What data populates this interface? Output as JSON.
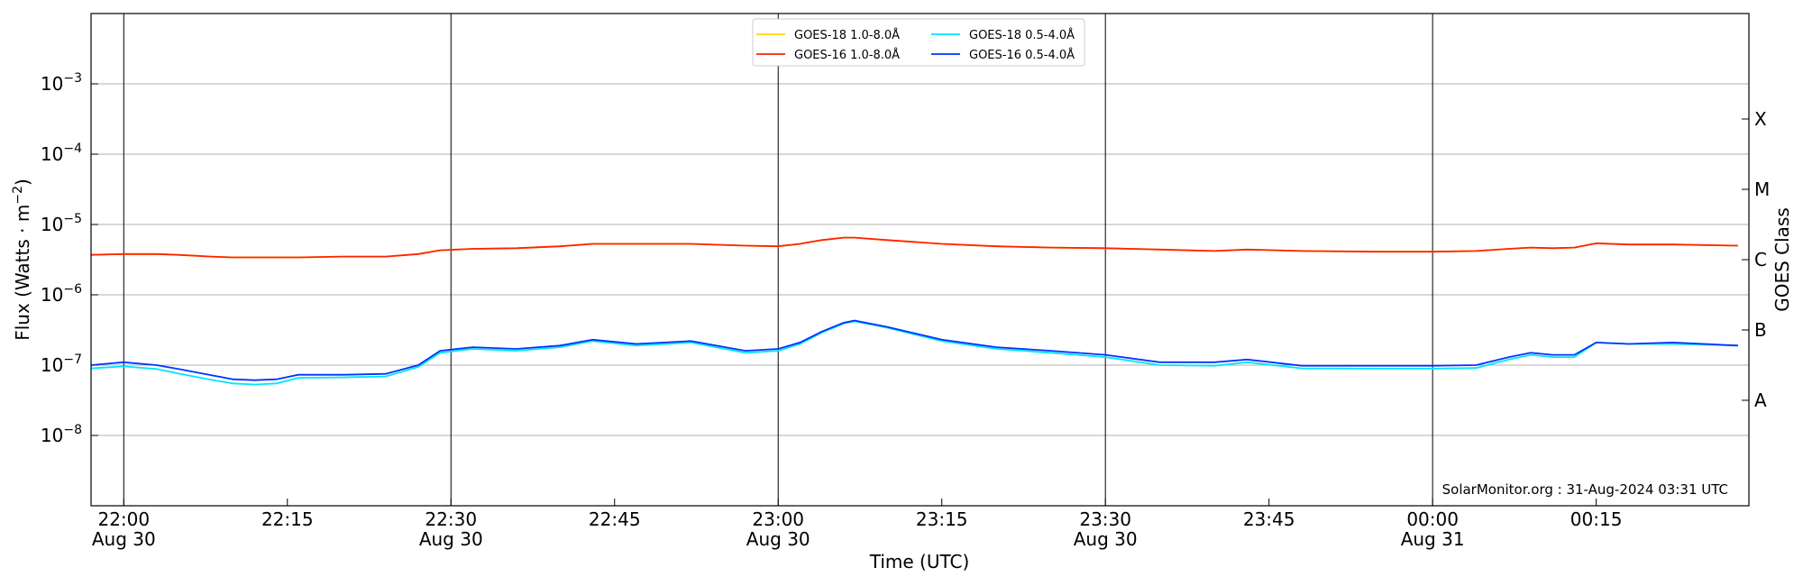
{
  "chart_data": {
    "type": "line",
    "xlabel": "Time (UTC)",
    "ylabel": "Flux (Watts · m",
    "ylabel_sup": "−2",
    "ylabel_end": ")",
    "y2label": "GOES Class",
    "annotation": "SolarMonitor.org : 31-Aug-2024 03:31 UTC",
    "log_y": true,
    "grid": true,
    "legend": "upper center",
    "xlim": [
      "Aug 30 21:57",
      "Aug 31 00:29"
    ],
    "xticks": [
      {
        "value": "Aug 30 22:00",
        "label": "22:00",
        "date": "Aug 30"
      },
      {
        "value": "Aug 30 22:15",
        "label": "22:15"
      },
      {
        "value": "Aug 30 22:30",
        "label": "22:30",
        "date": "Aug 30"
      },
      {
        "value": "Aug 30 22:45",
        "label": "22:45"
      },
      {
        "value": "Aug 30 23:00",
        "label": "23:00",
        "date": "Aug 30"
      },
      {
        "value": "Aug 30 23:15",
        "label": "23:15"
      },
      {
        "value": "Aug 30 23:30",
        "label": "23:30",
        "date": "Aug 30"
      },
      {
        "value": "Aug 30 23:45",
        "label": "23:45"
      },
      {
        "value": "Aug 31 00:00",
        "label": "00:00",
        "date": "Aug 31"
      },
      {
        "value": "Aug 31 00:15",
        "label": "00:15"
      }
    ],
    "ylim": [
      1e-09,
      0.01
    ],
    "yticks": [
      {
        "value": 1e-08,
        "label": "10",
        "sup": "−8"
      },
      {
        "value": 1e-07,
        "label": "10",
        "sup": "−7"
      },
      {
        "value": 1e-06,
        "label": "10",
        "sup": "−6"
      },
      {
        "value": 1e-05,
        "label": "10",
        "sup": "−5"
      },
      {
        "value": 0.0001,
        "label": "10",
        "sup": "−4"
      },
      {
        "value": 0.001,
        "label": "10",
        "sup": "−3"
      }
    ],
    "y2ticks": [
      {
        "value": 3.162e-08,
        "label": "A"
      },
      {
        "value": 3.162e-07,
        "label": "B"
      },
      {
        "value": 3.162e-06,
        "label": "C"
      },
      {
        "value": 3.162e-05,
        "label": "M"
      },
      {
        "value": 0.0003162,
        "label": "X"
      }
    ],
    "x": [
      "Aug 30 21:57",
      "Aug 30 22:00",
      "Aug 30 22:03",
      "Aug 30 22:05",
      "Aug 30 22:08",
      "Aug 30 22:10",
      "Aug 30 22:12",
      "Aug 30 22:14",
      "Aug 30 22:16",
      "Aug 30 22:20",
      "Aug 30 22:24",
      "Aug 30 22:27",
      "Aug 30 22:29",
      "Aug 30 22:32",
      "Aug 30 22:36",
      "Aug 30 22:40",
      "Aug 30 22:43",
      "Aug 30 22:47",
      "Aug 30 22:52",
      "Aug 30 22:57",
      "Aug 30 23:00",
      "Aug 30 23:02",
      "Aug 30 23:04",
      "Aug 30 23:06",
      "Aug 30 23:07",
      "Aug 30 23:10",
      "Aug 30 23:15",
      "Aug 30 23:20",
      "Aug 30 23:25",
      "Aug 30 23:30",
      "Aug 30 23:35",
      "Aug 30 23:40",
      "Aug 30 23:43",
      "Aug 30 23:48",
      "Aug 30 23:55",
      "Aug 31 00:00",
      "Aug 31 00:04",
      "Aug 31 00:07",
      "Aug 31 00:09",
      "Aug 31 00:11",
      "Aug 31 00:13",
      "Aug 31 00:15",
      "Aug 31 00:18",
      "Aug 31 00:22",
      "Aug 31 00:28"
    ],
    "series": [
      {
        "name": "GOES-18 1.0-8.0Å",
        "color": "#ffd700",
        "values": [
          3.7e-06,
          3.8e-06,
          3.8e-06,
          3.7e-06,
          3.5e-06,
          3.4e-06,
          3.4e-06,
          3.4e-06,
          3.4e-06,
          3.5e-06,
          3.5e-06,
          3.8e-06,
          4.3e-06,
          4.5e-06,
          4.6e-06,
          4.9e-06,
          5.3e-06,
          5.3e-06,
          5.3e-06,
          5e-06,
          4.9e-06,
          5.3e-06,
          6e-06,
          6.5e-06,
          6.5e-06,
          6e-06,
          5.3e-06,
          4.9e-06,
          4.7e-06,
          4.6e-06,
          4.4e-06,
          4.2e-06,
          4.4e-06,
          4.2e-06,
          4.1e-06,
          4.1e-06,
          4.2e-06,
          4.5e-06,
          4.7e-06,
          4.6e-06,
          4.7e-06,
          5.4e-06,
          5.2e-06,
          5.2e-06,
          5e-06
        ]
      },
      {
        "name": "GOES-16 1.0-8.0Å",
        "color": "#ff2200",
        "values": [
          3.7e-06,
          3.8e-06,
          3.8e-06,
          3.7e-06,
          3.5e-06,
          3.4e-06,
          3.4e-06,
          3.4e-06,
          3.4e-06,
          3.5e-06,
          3.5e-06,
          3.8e-06,
          4.3e-06,
          4.5e-06,
          4.6e-06,
          4.9e-06,
          5.3e-06,
          5.3e-06,
          5.3e-06,
          5e-06,
          4.9e-06,
          5.3e-06,
          6e-06,
          6.5e-06,
          6.5e-06,
          6e-06,
          5.3e-06,
          4.9e-06,
          4.7e-06,
          4.6e-06,
          4.4e-06,
          4.2e-06,
          4.4e-06,
          4.2e-06,
          4.1e-06,
          4.1e-06,
          4.2e-06,
          4.5e-06,
          4.7e-06,
          4.6e-06,
          4.7e-06,
          5.4e-06,
          5.2e-06,
          5.2e-06,
          5e-06
        ]
      },
      {
        "name": "GOES-18 0.5-4.0Å",
        "color": "#00e5ff",
        "values": [
          9e-08,
          9.6e-08,
          8.8e-08,
          7.6e-08,
          6.2e-08,
          5.5e-08,
          5.3e-08,
          5.5e-08,
          6.6e-08,
          6.7e-08,
          6.9e-08,
          9.4e-08,
          1.5e-07,
          1.7e-07,
          1.6e-07,
          1.8e-07,
          2.2e-07,
          1.9e-07,
          2.1e-07,
          1.5e-07,
          1.6e-07,
          2e-07,
          2.9e-07,
          3.9e-07,
          4.2e-07,
          3.4e-07,
          2.2e-07,
          1.7e-07,
          1.5e-07,
          1.3e-07,
          1e-07,
          9.8e-08,
          1.1e-07,
          9e-08,
          8.9e-08,
          8.9e-08,
          9.1e-08,
          1.2e-07,
          1.4e-07,
          1.3e-07,
          1.3e-07,
          2.1e-07,
          2e-07,
          2e-07,
          1.9e-07
        ]
      },
      {
        "name": "GOES-16 0.5-4.0Å",
        "color": "#0033ff",
        "values": [
          1e-07,
          1.1e-07,
          1e-07,
          8.8e-08,
          7.2e-08,
          6.3e-08,
          6.1e-08,
          6.3e-08,
          7.3e-08,
          7.3e-08,
          7.5e-08,
          1e-07,
          1.6e-07,
          1.8e-07,
          1.7e-07,
          1.9e-07,
          2.3e-07,
          2e-07,
          2.2e-07,
          1.6e-07,
          1.7e-07,
          2.1e-07,
          3e-07,
          4e-07,
          4.3e-07,
          3.5e-07,
          2.3e-07,
          1.8e-07,
          1.6e-07,
          1.4e-07,
          1.1e-07,
          1.1e-07,
          1.2e-07,
          9.8e-08,
          9.8e-08,
          9.8e-08,
          1e-07,
          1.3e-07,
          1.5e-07,
          1.4e-07,
          1.4e-07,
          2.1e-07,
          2e-07,
          2.1e-07,
          1.9e-07
        ]
      }
    ]
  }
}
